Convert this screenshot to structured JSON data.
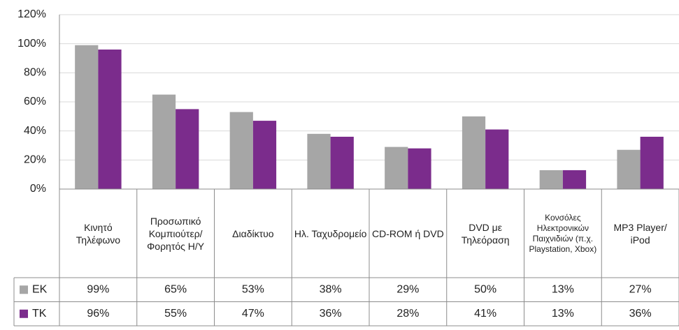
{
  "chart_data": {
    "type": "bar",
    "categories": [
      "Κινητό Τηλέφωνο",
      "Προσωπικό Κομπιούτερ/ Φορητός Η/Υ",
      "Διαδίκτυο",
      "Ηλ. Ταχυδρομείο",
      "CD-ROM ή DVD",
      "DVD με Τηλεόραση",
      "Κονσόλες Ηλεκτρονικών Παιχνιδιών (π.χ. Playstation, Xbox)",
      "MP3 Player/ iPod"
    ],
    "series": [
      {
        "name": "ΕΚ",
        "color": "#a6a6a6",
        "values": [
          99,
          65,
          53,
          38,
          29,
          50,
          13,
          27
        ],
        "value_labels": [
          "99%",
          "65%",
          "53%",
          "38%",
          "29%",
          "50%",
          "13%",
          "27%"
        ]
      },
      {
        "name": "ΤΚ",
        "color": "#7b2c8c",
        "values": [
          96,
          55,
          47,
          36,
          28,
          41,
          13,
          36
        ],
        "value_labels": [
          "96%",
          "55%",
          "47%",
          "36%",
          "28%",
          "41%",
          "13%",
          "36%"
        ]
      }
    ],
    "ylim": [
      0,
      120
    ],
    "yticks": [
      {
        "value": 0,
        "label": "0%"
      },
      {
        "value": 20,
        "label": "20%"
      },
      {
        "value": 40,
        "label": "40%"
      },
      {
        "value": 60,
        "label": "60%"
      },
      {
        "value": 80,
        "label": "80%"
      },
      {
        "value": 100,
        "label": "100%"
      },
      {
        "value": 120,
        "label": "120%"
      }
    ],
    "grid": true
  }
}
